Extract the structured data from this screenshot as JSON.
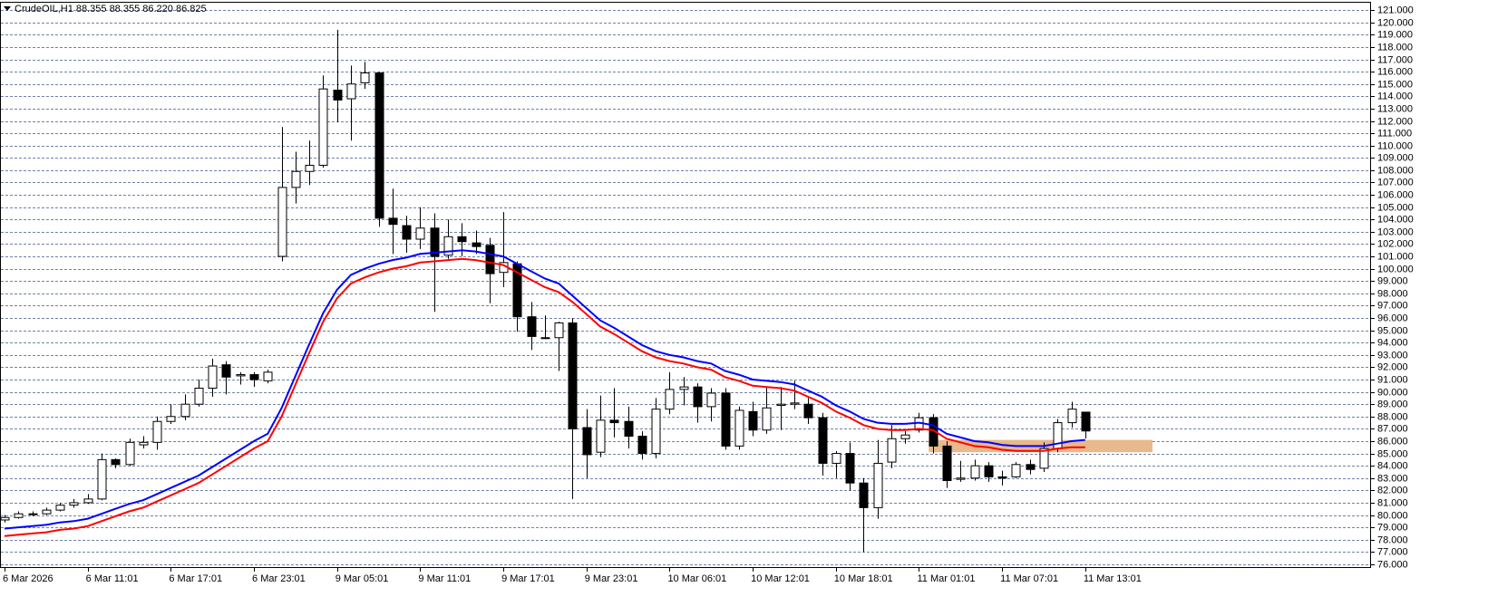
{
  "chart_data": {
    "type": "candlestick",
    "title": "CrudeOIL,H1  88.355 88.355 86.220 86.825",
    "categories": [
      "6 Mar 2026",
      null,
      null,
      null,
      null,
      null,
      "6 Mar 11:01",
      null,
      null,
      null,
      null,
      null,
      "6 Mar 17:01",
      null,
      null,
      null,
      null,
      null,
      "6 Mar 23:01",
      null,
      null,
      null,
      null,
      null,
      "9 Mar 05:01",
      null,
      null,
      null,
      null,
      null,
      "9 Mar 11:01",
      null,
      null,
      null,
      null,
      null,
      "9 Mar 17:01",
      null,
      null,
      null,
      null,
      null,
      "9 Mar 23:01",
      null,
      null,
      null,
      null,
      null,
      "10 Mar 06:01",
      null,
      null,
      null,
      null,
      null,
      "10 Mar 12:01",
      null,
      null,
      null,
      null,
      null,
      "10 Mar 18:01",
      null,
      null,
      null,
      null,
      null,
      "11 Mar 01:01",
      null,
      null,
      null,
      null,
      null,
      "11 Mar 07:01",
      null,
      null,
      null,
      null,
      null,
      "11 Mar 13:01"
    ],
    "candles": {
      "open": [
        79.6,
        79.8,
        80.1,
        80.1,
        80.4,
        80.8,
        81.0,
        81.3,
        84.5,
        84.1,
        85.7,
        85.9,
        87.6,
        88.0,
        89.0,
        90.3,
        92.2,
        91.3,
        91.4,
        90.9,
        101.0,
        106.6,
        107.9,
        108.4,
        114.5,
        113.8,
        115.1,
        115.9,
        104.1,
        103.5,
        102.4,
        103.3,
        101.1,
        102.6,
        102.1,
        101.9,
        99.7,
        100.4,
        96.1,
        94.4,
        94.4,
        95.6,
        87.1,
        85.1,
        87.7,
        87.6,
        86.4,
        85.0,
        88.6,
        90.2,
        90.4,
        88.8,
        89.9,
        85.6,
        88.4,
        86.9,
        88.9,
        89.0,
        89.0,
        87.9,
        84.2,
        85.0,
        82.6,
        80.6,
        84.3,
        86.2,
        86.9,
        87.9,
        85.6,
        82.9,
        83.0,
        84.0,
        83.1,
        83.1,
        84.1,
        83.8,
        85.4,
        87.5,
        88.355
      ],
      "high": [
        80.0,
        80.3,
        80.3,
        80.6,
        81.0,
        81.3,
        81.7,
        85.0,
        84.6,
        86.2,
        86.4,
        88.0,
        89.0,
        89.8,
        91.0,
        92.7,
        92.5,
        91.6,
        91.6,
        91.8,
        111.5,
        109.5,
        110.4,
        115.7,
        119.4,
        116.5,
        116.8,
        116.0,
        106.5,
        104.3,
        105.0,
        104.5,
        104.0,
        103.7,
        103.1,
        102.5,
        104.6,
        100.6,
        97.3,
        96.2,
        95.7,
        96.0,
        88.6,
        89.7,
        90.3,
        88.8,
        86.8,
        89.5,
        91.6,
        91.2,
        90.7,
        90.3,
        90.3,
        88.8,
        89.2,
        90.4,
        90.4,
        90.9,
        89.5,
        88.3,
        85.2,
        85.9,
        83.0,
        86.1,
        87.3,
        86.8,
        88.3,
        88.2,
        86.0,
        84.4,
        84.5,
        84.3,
        83.6,
        84.3,
        84.5,
        85.9,
        87.8,
        89.2,
        88.355
      ],
      "low": [
        79.4,
        79.7,
        79.9,
        80.0,
        80.3,
        80.6,
        80.9,
        81.2,
        83.8,
        84.0,
        85.4,
        85.3,
        87.4,
        87.7,
        88.8,
        89.6,
        89.8,
        90.6,
        90.4,
        90.7,
        100.6,
        105.3,
        106.8,
        108.2,
        111.9,
        110.4,
        114.6,
        103.4,
        101.2,
        101.3,
        101.6,
        96.5,
        100.8,
        101.0,
        101.2,
        97.2,
        98.5,
        94.9,
        93.4,
        94.3,
        91.7,
        81.3,
        83.0,
        84.7,
        86.3,
        85.4,
        84.5,
        84.6,
        88.2,
        88.9,
        87.5,
        87.6,
        85.3,
        85.3,
        86.4,
        86.6,
        86.9,
        88.6,
        87.4,
        83.2,
        83.0,
        82.0,
        77.0,
        79.7,
        83.8,
        85.8,
        86.7,
        85.0,
        82.2,
        82.7,
        82.8,
        82.7,
        82.4,
        83.0,
        83.3,
        83.5,
        85.1,
        87.1,
        86.22
      ],
      "close": [
        79.8,
        80.1,
        80.1,
        80.4,
        80.8,
        81.0,
        81.3,
        84.5,
        84.1,
        85.9,
        85.9,
        87.6,
        88.0,
        89.0,
        90.3,
        92.1,
        91.2,
        91.4,
        91.0,
        91.6,
        106.6,
        107.9,
        108.4,
        114.6,
        113.7,
        115.0,
        115.9,
        104.1,
        103.6,
        102.4,
        103.3,
        101.0,
        102.6,
        102.2,
        101.8,
        99.6,
        100.5,
        96.1,
        94.5,
        94.4,
        95.6,
        87.0,
        84.9,
        87.7,
        87.5,
        86.4,
        85.0,
        88.6,
        90.2,
        90.4,
        88.8,
        89.9,
        85.6,
        88.5,
        86.9,
        88.7,
        89.0,
        89.1,
        87.9,
        84.2,
        85.0,
        82.6,
        80.6,
        84.2,
        86.2,
        86.5,
        87.9,
        85.6,
        82.8,
        83.0,
        84.0,
        83.1,
        83.0,
        84.1,
        83.7,
        85.4,
        87.5,
        88.6,
        86.825
      ],
      "up_color": "#ffffff",
      "down_color": "#000000",
      "outline_color": "#000000"
    },
    "moving_averages": [
      {
        "color": "#0000ff",
        "values": [
          78.9,
          79.0,
          79.1,
          79.2,
          79.4,
          79.5,
          79.7,
          80.1,
          80.5,
          80.9,
          81.2,
          81.7,
          82.2,
          82.7,
          83.2,
          83.9,
          84.6,
          85.3,
          86.0,
          86.6,
          88.7,
          91.3,
          93.9,
          96.4,
          98.3,
          99.5,
          100.0,
          100.4,
          100.7,
          100.9,
          101.2,
          101.3,
          101.4,
          101.5,
          101.4,
          101.2,
          101.0,
          100.4,
          99.8,
          99.2,
          98.8,
          97.8,
          96.8,
          95.8,
          95.2,
          94.5,
          93.8,
          93.3,
          93.0,
          92.8,
          92.5,
          92.3,
          91.7,
          91.4,
          91.0,
          90.9,
          90.8,
          90.6,
          90.1,
          89.6,
          88.9,
          88.4,
          87.8,
          87.5,
          87.4,
          87.4,
          87.5,
          87.3,
          86.6,
          86.3,
          86.0,
          85.9,
          85.7,
          85.6,
          85.6,
          85.6,
          85.8,
          86.0,
          86.1
        ]
      },
      {
        "color": "#ff0000",
        "values": [
          78.3,
          78.4,
          78.5,
          78.6,
          78.8,
          78.9,
          79.1,
          79.5,
          79.9,
          80.3,
          80.6,
          81.1,
          81.6,
          82.1,
          82.6,
          83.3,
          84.0,
          84.7,
          85.4,
          86.0,
          88.0,
          90.6,
          93.2,
          95.7,
          97.6,
          98.8,
          99.3,
          99.7,
          100.0,
          100.2,
          100.5,
          100.6,
          100.7,
          100.8,
          100.7,
          100.5,
          100.3,
          99.7,
          99.1,
          98.5,
          98.1,
          97.3,
          96.3,
          95.3,
          94.7,
          94.0,
          93.3,
          92.8,
          92.5,
          92.3,
          92.0,
          91.8,
          91.2,
          90.9,
          90.5,
          90.4,
          90.3,
          90.1,
          89.6,
          89.1,
          88.4,
          87.9,
          87.3,
          87.0,
          86.9,
          86.9,
          87.0,
          86.9,
          86.2,
          85.9,
          85.6,
          85.5,
          85.3,
          85.2,
          85.2,
          85.2,
          85.4,
          85.5,
          85.5
        ]
      }
    ],
    "zone": {
      "from": 85.1,
      "to": 86.1,
      "color": "#e8b98a"
    },
    "ylim": [
      75.7,
      121.6
    ],
    "yticks": [
      {
        "value": 76,
        "label": "76.000"
      },
      {
        "value": 77,
        "label": "77.000"
      },
      {
        "value": 78,
        "label": "78.000"
      },
      {
        "value": 79,
        "label": "79.000"
      },
      {
        "value": 80,
        "label": "80.000"
      },
      {
        "value": 81,
        "label": "81.000"
      },
      {
        "value": 82,
        "label": "82.000"
      },
      {
        "value": 83,
        "label": "83.000"
      },
      {
        "value": 84,
        "label": "84.000"
      },
      {
        "value": 85,
        "label": "85.000"
      },
      {
        "value": 86,
        "label": "86.000"
      },
      {
        "value": 87,
        "label": "87.000"
      },
      {
        "value": 88,
        "label": "88.000"
      },
      {
        "value": 89,
        "label": "89.000"
      },
      {
        "value": 90,
        "label": "90.000"
      },
      {
        "value": 91,
        "label": "91.000"
      },
      {
        "value": 92,
        "label": "92.000"
      },
      {
        "value": 93,
        "label": "93.000"
      },
      {
        "value": 94,
        "label": "94.000"
      },
      {
        "value": 95,
        "label": "95.000"
      },
      {
        "value": 96,
        "label": "96.000"
      },
      {
        "value": 97,
        "label": "97.000"
      },
      {
        "value": 98,
        "label": "98.000"
      },
      {
        "value": 99,
        "label": "99.000"
      },
      {
        "value": 100,
        "label": "100.000"
      },
      {
        "value": 101,
        "label": "101.000"
      },
      {
        "value": 102,
        "label": "102.000"
      },
      {
        "value": 103,
        "label": "103.000"
      },
      {
        "value": 104,
        "label": "104.000"
      },
      {
        "value": 105,
        "label": "105.000"
      },
      {
        "value": 106,
        "label": "106.000"
      },
      {
        "value": 107,
        "label": "107.000"
      },
      {
        "value": 108,
        "label": "108.000"
      },
      {
        "value": 109,
        "label": "109.000"
      },
      {
        "value": 110,
        "label": "110.000"
      },
      {
        "value": 111,
        "label": "111.000"
      },
      {
        "value": 112,
        "label": "112.000"
      },
      {
        "value": 113,
        "label": "113.000"
      },
      {
        "value": 114,
        "label": "114.000"
      },
      {
        "value": 115,
        "label": "115.000"
      },
      {
        "value": 116,
        "label": "116.000"
      },
      {
        "value": 117,
        "label": "117.000"
      },
      {
        "value": 118,
        "label": "118.000"
      },
      {
        "value": 119,
        "label": "119.000"
      },
      {
        "value": 120,
        "label": "120.000"
      },
      {
        "value": 121,
        "label": "121.000"
      }
    ],
    "grid": true
  }
}
